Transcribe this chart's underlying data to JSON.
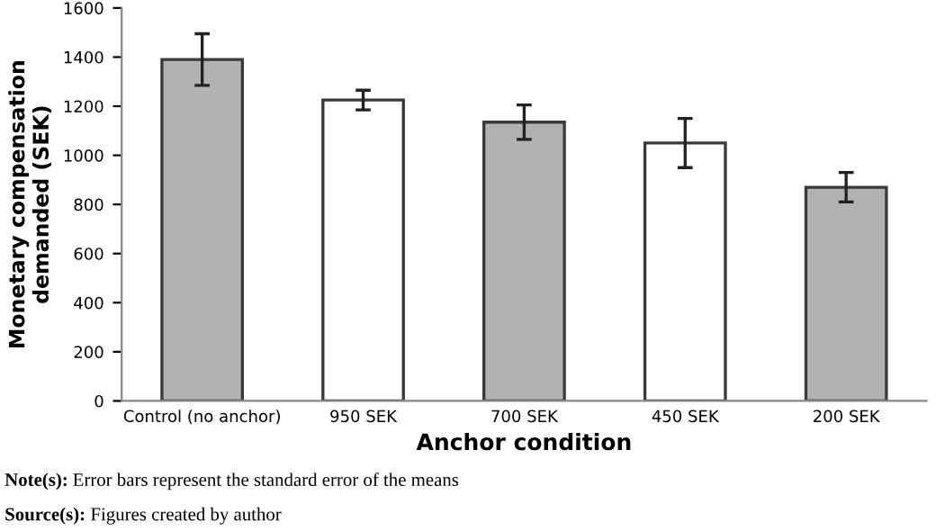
{
  "chart_data": {
    "type": "bar",
    "xlabel": "Anchor condition",
    "ylabel": "Monetary compensation\ndemanded (SEK)",
    "categories": [
      "Control (no anchor)",
      "950 SEK",
      "700 SEK",
      "450 SEK",
      "200 SEK"
    ],
    "values": [
      1390,
      1225,
      1135,
      1050,
      870
    ],
    "errors": [
      105,
      40,
      70,
      100,
      60
    ],
    "colors": [
      "#b2b2b2",
      "#ffffff",
      "#b2b2b2",
      "#ffffff",
      "#b2b2b2"
    ],
    "ylim": [
      0,
      1600
    ],
    "yticks": [
      0,
      200,
      400,
      600,
      800,
      1000,
      1200,
      1400,
      1600
    ],
    "grid": false,
    "annotations": [
      "Note(s): Error bars represent the standard error of the means",
      "Source(s): Figures created by author"
    ]
  }
}
